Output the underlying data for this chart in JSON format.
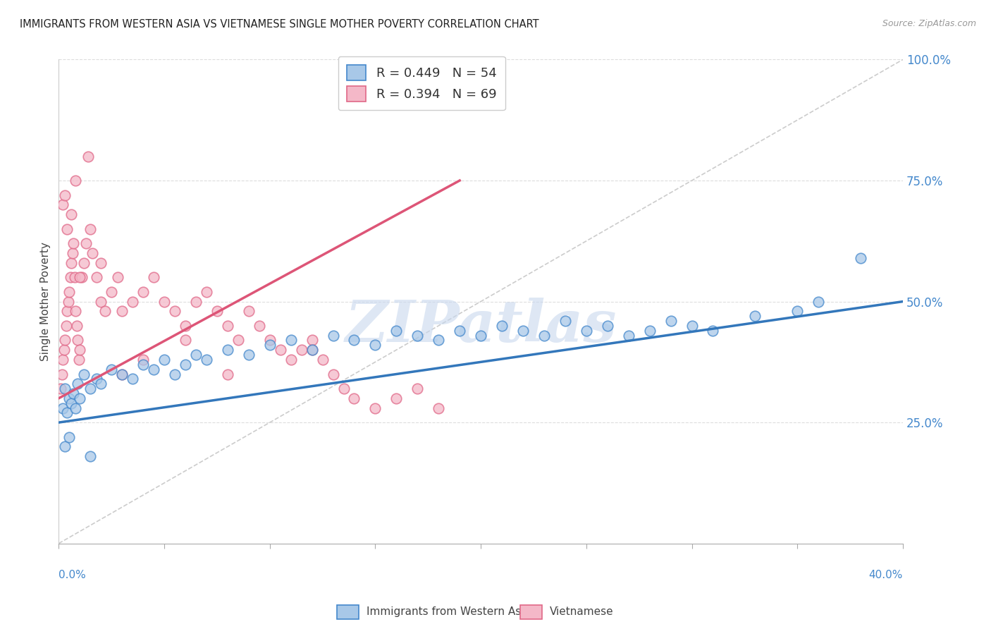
{
  "title": "IMMIGRANTS FROM WESTERN ASIA VS VIETNAMESE SINGLE MOTHER POVERTY CORRELATION CHART",
  "source": "Source: ZipAtlas.com",
  "ylabel": "Single Mother Poverty",
  "right_ytick_vals": [
    25.0,
    50.0,
    75.0,
    100.0
  ],
  "xmin": 0.0,
  "xmax": 40.0,
  "ymin": 0.0,
  "ymax": 100.0,
  "legend_label_blue": "Immigrants from Western Asia",
  "legend_label_pink": "Vietnamese",
  "R_blue": 0.449,
  "N_blue": 54,
  "R_pink": 0.394,
  "N_pink": 69,
  "blue_fill": "#a8c8e8",
  "pink_fill": "#f4b8c8",
  "blue_edge": "#4488cc",
  "pink_edge": "#e06888",
  "blue_line": "#3377bb",
  "pink_line": "#dd5577",
  "ref_line_color": "#cccccc",
  "grid_color": "#dddddd",
  "watermark": "ZIPatlas",
  "watermark_color": "#c8d8ee",
  "blue_scatter_x": [
    0.2,
    0.3,
    0.4,
    0.5,
    0.6,
    0.7,
    0.8,
    0.9,
    1.0,
    1.2,
    1.5,
    1.8,
    2.0,
    2.5,
    3.0,
    3.5,
    4.0,
    4.5,
    5.0,
    5.5,
    6.0,
    6.5,
    7.0,
    8.0,
    9.0,
    10.0,
    11.0,
    12.0,
    13.0,
    14.0,
    15.0,
    16.0,
    17.0,
    18.0,
    19.0,
    20.0,
    21.0,
    22.0,
    23.0,
    24.0,
    25.0,
    26.0,
    27.0,
    28.0,
    29.0,
    30.0,
    31.0,
    33.0,
    35.0,
    36.0,
    38.0,
    0.3,
    0.5,
    1.5
  ],
  "blue_scatter_y": [
    28,
    32,
    27,
    30,
    29,
    31,
    28,
    33,
    30,
    35,
    32,
    34,
    33,
    36,
    35,
    34,
    37,
    36,
    38,
    35,
    37,
    39,
    38,
    40,
    39,
    41,
    42,
    40,
    43,
    42,
    41,
    44,
    43,
    42,
    44,
    43,
    45,
    44,
    43,
    46,
    44,
    45,
    43,
    44,
    46,
    45,
    44,
    47,
    48,
    50,
    59,
    20,
    22,
    18
  ],
  "pink_scatter_x": [
    0.1,
    0.15,
    0.2,
    0.25,
    0.3,
    0.35,
    0.4,
    0.45,
    0.5,
    0.55,
    0.6,
    0.65,
    0.7,
    0.75,
    0.8,
    0.85,
    0.9,
    0.95,
    1.0,
    1.1,
    1.2,
    1.3,
    1.5,
    1.6,
    1.8,
    2.0,
    2.2,
    2.5,
    2.8,
    3.0,
    3.5,
    4.0,
    4.5,
    5.0,
    5.5,
    6.0,
    6.5,
    7.0,
    7.5,
    8.0,
    8.5,
    9.0,
    9.5,
    10.0,
    10.5,
    11.0,
    11.5,
    12.0,
    12.5,
    13.0,
    13.5,
    14.0,
    15.0,
    16.0,
    17.0,
    18.0,
    0.2,
    0.3,
    0.4,
    0.6,
    0.8,
    1.0,
    1.4,
    2.0,
    3.0,
    4.0,
    6.0,
    8.0,
    12.0
  ],
  "pink_scatter_y": [
    32,
    35,
    38,
    40,
    42,
    45,
    48,
    50,
    52,
    55,
    58,
    60,
    62,
    55,
    48,
    45,
    42,
    38,
    40,
    55,
    58,
    62,
    65,
    60,
    55,
    50,
    48,
    52,
    55,
    48,
    50,
    52,
    55,
    50,
    48,
    45,
    50,
    52,
    48,
    45,
    42,
    48,
    45,
    42,
    40,
    38,
    40,
    42,
    38,
    35,
    32,
    30,
    28,
    30,
    32,
    28,
    70,
    72,
    65,
    68,
    75,
    55,
    80,
    58,
    35,
    38,
    42,
    35,
    40
  ],
  "blue_trendline_x0": 0.0,
  "blue_trendline_y0": 25.0,
  "blue_trendline_x1": 40.0,
  "blue_trendline_y1": 50.0,
  "pink_trendline_x0": 0.0,
  "pink_trendline_y0": 30.0,
  "pink_trendline_x1": 19.0,
  "pink_trendline_y1": 75.0
}
